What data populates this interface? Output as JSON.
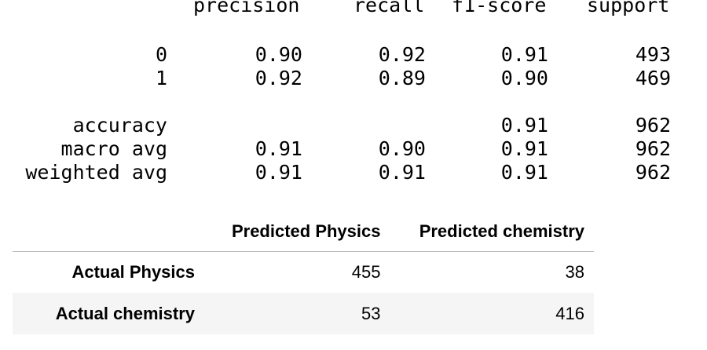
{
  "report": {
    "headers": [
      "precision",
      "recall",
      "f1-score",
      "support"
    ],
    "rows": [
      [
        "0",
        "0.90",
        "0.92",
        "0.91",
        "493"
      ],
      [
        "1",
        "0.92",
        "0.89",
        "0.90",
        "469"
      ],
      [
        "accuracy",
        "",
        "",
        "0.91",
        "962"
      ],
      [
        "macro avg",
        "0.91",
        "0.90",
        "0.91",
        "962"
      ],
      [
        "weighted avg",
        "0.91",
        "0.91",
        "0.91",
        "962"
      ]
    ]
  },
  "confusion_matrix": {
    "columns": [
      "Predicted Physics",
      "Predicted chemistry"
    ],
    "rows": [
      {
        "label": "Actual Physics",
        "values": [
          "455",
          "38"
        ]
      },
      {
        "label": "Actual chemistry",
        "values": [
          "53",
          "416"
        ]
      }
    ]
  }
}
